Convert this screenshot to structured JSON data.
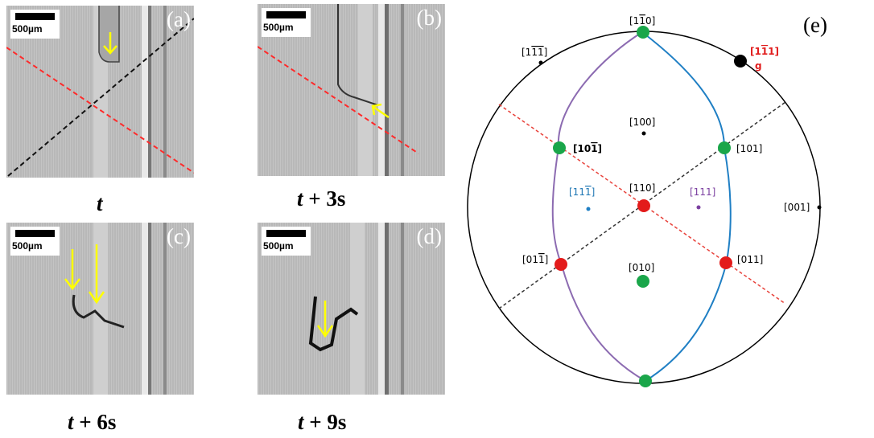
{
  "panels": [
    {
      "id": "a",
      "label": "(a)",
      "scalebar": "500µm",
      "caption_time": "t",
      "caption_suffix": ""
    },
    {
      "id": "b",
      "label": "(b)",
      "scalebar": "500µm",
      "caption_time": "t",
      "caption_suffix": " + 3s"
    },
    {
      "id": "c",
      "label": "(c)",
      "scalebar": "500µm",
      "caption_time": "t",
      "caption_suffix": " + 6s"
    },
    {
      "id": "d",
      "label": "(d)",
      "scalebar": "500µm",
      "caption_time": "t",
      "caption_suffix": " + 9s"
    }
  ],
  "stereogram": {
    "label": "(e)",
    "poles": {
      "p1m10": {
        "pre": "[1",
        "bar": "1",
        "post": "0]",
        "color": "#000000"
      },
      "p1m1m1": {
        "pre": "[1",
        "bar": "11",
        "post": "]",
        "color": "#000000"
      },
      "p1m11": {
        "pre": "[1",
        "bar": "1",
        "post": "1]",
        "color": "#e11d1d",
        "suffix": "g"
      },
      "p100": {
        "text": "[100]",
        "color": "#000000"
      },
      "p10m1": {
        "pre": "[10",
        "bar": "1",
        "post": "]",
        "color": "#000000"
      },
      "p101": {
        "text": "[101]",
        "color": "#000000"
      },
      "p11m1": {
        "pre": "[11",
        "bar": "1",
        "post": "]",
        "color": "#1f77b4"
      },
      "p110": {
        "text": "[110]",
        "color": "#000000"
      },
      "p111": {
        "text": "[111]",
        "color": "#7b3fa0"
      },
      "p001": {
        "text": "[001]",
        "color": "#000000"
      },
      "p01m1": {
        "pre": "[01",
        "bar": "1",
        "post": "]",
        "color": "#000000"
      },
      "p011": {
        "text": "[011]",
        "color": "#000000"
      },
      "p010": {
        "text": "[010]",
        "color": "#000000"
      }
    },
    "colors": {
      "green_pole": "#1aa64a",
      "red_pole": "#e31b1b",
      "black_pole": "#000000",
      "blue_curve": "#1f7fc4",
      "purple_curve": "#8c6bb1",
      "red_dashed": "#e8413a",
      "black_dashed": "#333333",
      "arrow": "#c0504d",
      "yellow_arrow": "#ffff00"
    }
  }
}
